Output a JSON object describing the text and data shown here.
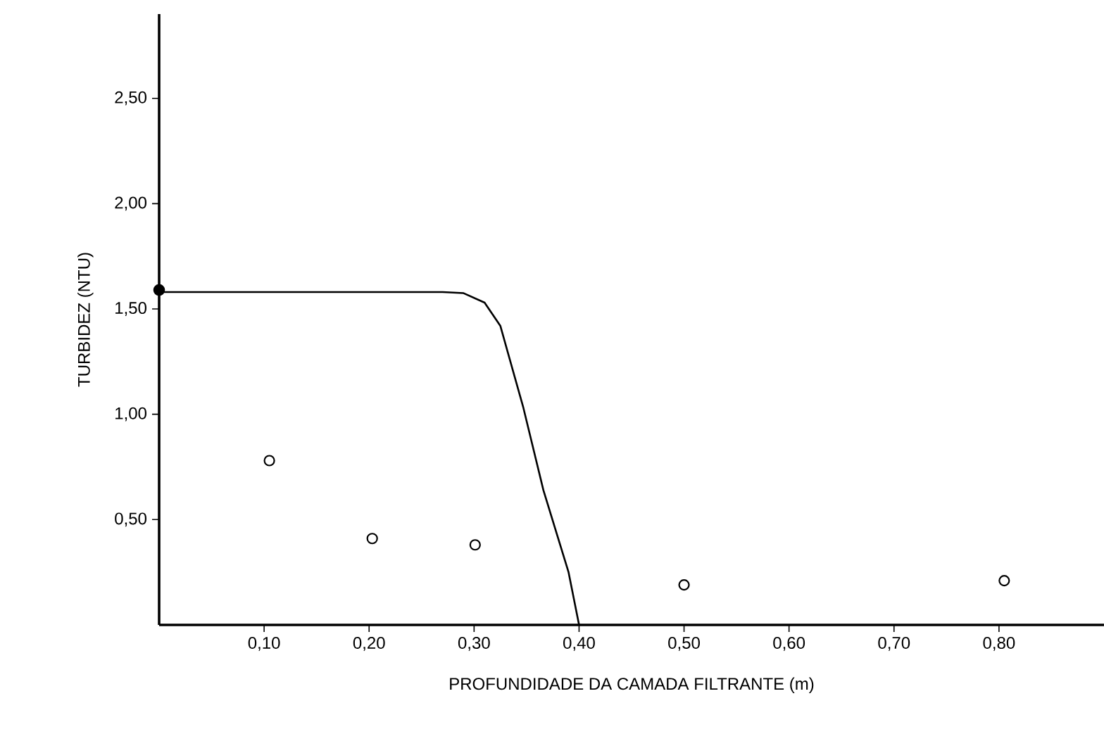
{
  "chart_data": {
    "type": "scatter",
    "xlabel": "PROFUNDIDADE DA CAMADA FILTRANTE (m)",
    "ylabel": "TURBIDEZ (NTU)",
    "xlim": [
      0,
      0.9
    ],
    "ylim": [
      0,
      2.9
    ],
    "xticks": [
      {
        "value": 0.1,
        "label": "0,10"
      },
      {
        "value": 0.2,
        "label": "0,20"
      },
      {
        "value": 0.3,
        "label": "0,30"
      },
      {
        "value": 0.4,
        "label": "0,40"
      },
      {
        "value": 0.5,
        "label": "0,50"
      },
      {
        "value": 0.6,
        "label": "0,60"
      },
      {
        "value": 0.7,
        "label": "0,70"
      },
      {
        "value": 0.8,
        "label": "0,80"
      }
    ],
    "yticks": [
      {
        "value": 0.5,
        "label": "0,50"
      },
      {
        "value": 1.0,
        "label": "1,00"
      },
      {
        "value": 1.5,
        "label": "1,50"
      },
      {
        "value": 2.0,
        "label": "2,00"
      },
      {
        "value": 2.5,
        "label": "2,50"
      }
    ],
    "grid": false,
    "series": [
      {
        "type": "line",
        "color": "#000000",
        "marker": "none",
        "x": [
          0,
          0.1,
          0.2,
          0.27,
          0.29,
          0.31,
          0.325,
          0.347,
          0.366,
          0.39,
          0.4
        ],
        "values": [
          1.58,
          1.58,
          1.58,
          1.58,
          1.575,
          1.53,
          1.42,
          1.03,
          0.64,
          0.25,
          0
        ]
      },
      {
        "type": "line",
        "color": "#000000",
        "marker": "circle",
        "x": [
          0
        ],
        "values": [
          1.59
        ]
      },
      {
        "color": "#000000",
        "marker": "circle",
        "x": [
          0.105,
          0.203,
          0.301,
          0.5,
          0.805
        ],
        "values": [
          0.78,
          0.41,
          0.38,
          0.19,
          0.21
        ]
      }
    ]
  }
}
